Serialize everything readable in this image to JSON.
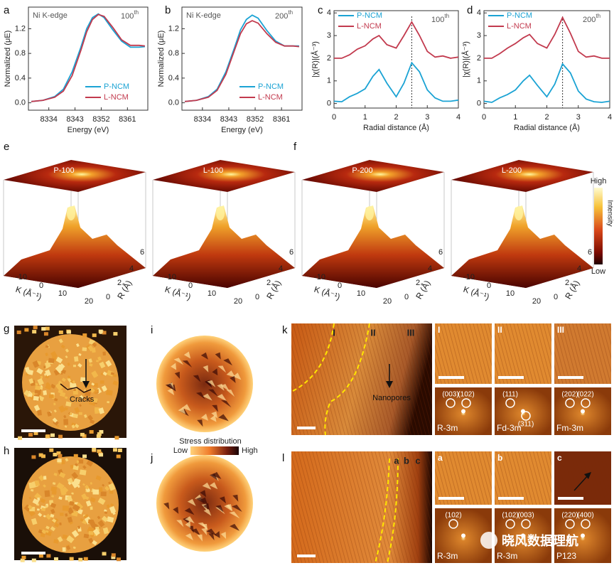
{
  "chart_data": [
    {
      "type": "line",
      "letter": "a",
      "edge_label": "Ni K-edge",
      "annotation": {
        "text": "100",
        "sup": "th"
      },
      "xlabel": "Energy (eV)",
      "ylabel": "Normalized (μE)",
      "xlim": [
        8327,
        8368
      ],
      "xticks": [
        8334,
        8343,
        8352,
        8361
      ],
      "ylim": [
        -0.12,
        1.55
      ],
      "yticks": [
        {
          "value": 0,
          "label": "0.0"
        },
        {
          "value": 0.4,
          "label": "0.4"
        },
        {
          "value": 0.8,
          "label": "0.8"
        },
        {
          "value": 1.2,
          "label": "1.2"
        }
      ],
      "legend": "lower right",
      "x": [
        8328,
        8332,
        8336,
        8339,
        8342,
        8345,
        8347,
        8349,
        8351,
        8353,
        8356,
        8359,
        8362,
        8365,
        8367
      ],
      "series": [
        {
          "name": "P-NCM",
          "color": "#1ba3d4",
          "values": [
            0.02,
            0.04,
            0.1,
            0.22,
            0.5,
            0.9,
            1.2,
            1.38,
            1.44,
            1.38,
            1.18,
            1.0,
            0.9,
            0.9,
            0.91
          ]
        },
        {
          "name": "L-NCM",
          "color": "#c23a4e",
          "values": [
            0.02,
            0.04,
            0.09,
            0.19,
            0.44,
            0.85,
            1.15,
            1.35,
            1.43,
            1.4,
            1.22,
            1.02,
            0.93,
            0.93,
            0.92
          ]
        }
      ]
    },
    {
      "type": "line",
      "letter": "b",
      "edge_label": "Ni K-edge",
      "annotation": {
        "text": "200",
        "sup": "th"
      },
      "xlabel": "Energy (eV)",
      "ylabel": "Normalized (μE)",
      "xlim": [
        8327,
        8368
      ],
      "xticks": [
        8334,
        8343,
        8352,
        8361
      ],
      "ylim": [
        -0.12,
        1.55
      ],
      "yticks": [
        {
          "value": 0,
          "label": "0.0"
        },
        {
          "value": 0.4,
          "label": "0.4"
        },
        {
          "value": 0.8,
          "label": "0.8"
        },
        {
          "value": 1.2,
          "label": "1.2"
        }
      ],
      "legend": "lower right",
      "x": [
        8328,
        8332,
        8336,
        8339,
        8342,
        8345,
        8347,
        8349,
        8351,
        8353,
        8356,
        8359,
        8362,
        8365,
        8367
      ],
      "series": [
        {
          "name": "P-NCM",
          "color": "#1ba3d4",
          "values": [
            0.02,
            0.04,
            0.1,
            0.22,
            0.5,
            0.9,
            1.18,
            1.35,
            1.42,
            1.37,
            1.17,
            1.0,
            0.92,
            0.92,
            0.92
          ]
        },
        {
          "name": "L-NCM",
          "color": "#c23a4e",
          "values": [
            0.02,
            0.04,
            0.09,
            0.2,
            0.46,
            0.86,
            1.12,
            1.28,
            1.33,
            1.29,
            1.12,
            0.98,
            0.92,
            0.92,
            0.91
          ]
        }
      ]
    },
    {
      "type": "line",
      "letter": "c",
      "annotation": {
        "text": "100",
        "sup": "th"
      },
      "xlabel": "Radial distance (Å)",
      "ylabel": "|χ(R)|(Å⁻³)",
      "xlim": [
        0,
        4
      ],
      "xticks": [
        0,
        1,
        2,
        3,
        4
      ],
      "ylim": [
        -0.2,
        4.1
      ],
      "yticks": [
        0,
        1,
        2,
        3,
        4
      ],
      "legend": "upper left",
      "ref_x": 2.5,
      "x": [
        0,
        0.25,
        0.5,
        0.75,
        1,
        1.25,
        1.45,
        1.7,
        2,
        2.25,
        2.5,
        2.75,
        3,
        3.25,
        3.5,
        3.75,
        4
      ],
      "series": [
        {
          "name": "P-NCM",
          "color": "#1ba3d4",
          "values": [
            0.1,
            0.08,
            0.3,
            0.45,
            0.65,
            1.2,
            1.5,
            0.9,
            0.3,
            0.9,
            1.8,
            1.4,
            0.6,
            0.25,
            0.1,
            0.1,
            0.15
          ]
        },
        {
          "name": "L-NCM",
          "color": "#c23a4e",
          "values": [
            2.0,
            2.0,
            2.15,
            2.4,
            2.55,
            2.85,
            3.0,
            2.6,
            2.45,
            3.0,
            3.6,
            3.0,
            2.3,
            2.05,
            2.1,
            2.0,
            2.05
          ]
        }
      ]
    },
    {
      "type": "line",
      "letter": "d",
      "annotation": {
        "text": "200",
        "sup": "th"
      },
      "xlabel": "Radial distance (Å)",
      "ylabel": "|χ(R)|(Å⁻³)",
      "xlim": [
        0,
        4
      ],
      "xticks": [
        0,
        1,
        2,
        3,
        4
      ],
      "ylim": [
        -0.2,
        4.1
      ],
      "yticks": [
        0,
        1,
        2,
        3,
        4
      ],
      "legend": "upper left",
      "ref_x": 2.5,
      "x": [
        0,
        0.25,
        0.5,
        0.75,
        1,
        1.25,
        1.45,
        1.7,
        2,
        2.25,
        2.5,
        2.75,
        3,
        3.25,
        3.5,
        3.75,
        4
      ],
      "series": [
        {
          "name": "P-NCM",
          "color": "#1ba3d4",
          "values": [
            0.1,
            0.05,
            0.25,
            0.4,
            0.6,
            1.0,
            1.25,
            0.8,
            0.3,
            0.85,
            1.75,
            1.35,
            0.55,
            0.2,
            0.08,
            0.05,
            0.1
          ]
        },
        {
          "name": "L-NCM",
          "color": "#c23a4e",
          "values": [
            2.0,
            2.0,
            2.2,
            2.45,
            2.65,
            2.9,
            3.05,
            2.65,
            2.45,
            3.05,
            3.8,
            3.1,
            2.3,
            2.05,
            2.1,
            2.0,
            2.0
          ]
        }
      ]
    }
  ],
  "panels": {
    "e": {
      "letter": "e",
      "plots": [
        "P-100",
        "L-100"
      ]
    },
    "f": {
      "letter": "f",
      "plots": [
        "P-200",
        "L-200"
      ]
    },
    "surface_axes": {
      "k_label": "K (Å⁻¹)",
      "k_ticks": [
        "-10",
        "0",
        "10",
        "20"
      ],
      "r_label": "R (Å)",
      "r_ticks": [
        "0",
        "2",
        "4",
        "6"
      ]
    },
    "intensity_bar": {
      "high": "High",
      "title": "Intensity",
      "low": "Low"
    },
    "g": {
      "letter": "g",
      "annotation": "Cracks"
    },
    "h": {
      "letter": "h"
    },
    "i": {
      "letter": "i"
    },
    "j": {
      "letter": "j"
    },
    "stress_bar": {
      "title": "Stress distribution",
      "low": "Low",
      "high": "High"
    },
    "k": {
      "letter": "k",
      "regions": [
        "I",
        "II",
        "III"
      ],
      "annotation": "Nanopores",
      "insets": [
        {
          "letter": "I",
          "spots": [
            "(003)",
            "(102)"
          ],
          "space_group": "R-3m"
        },
        {
          "letter": "II",
          "spots": [
            "(111)",
            "(311)"
          ],
          "space_group": "Fd-3m"
        },
        {
          "letter": "III",
          "spots": [
            "(202)",
            "(022)"
          ],
          "space_group": "Fm-3m"
        }
      ]
    },
    "l": {
      "letter": "l",
      "regions": [
        "a",
        "b",
        "c"
      ],
      "insets": [
        {
          "letter": "a",
          "spots": [
            "(102)"
          ],
          "space_group": "R-3m"
        },
        {
          "letter": "b",
          "spots": [
            "(102)",
            "(003)"
          ],
          "space_group": "R-3m"
        },
        {
          "letter": "c",
          "spots": [
            "(220)",
            "(400)"
          ],
          "space_group": "P123"
        }
      ]
    },
    "watermark": "晓风数据理航"
  }
}
